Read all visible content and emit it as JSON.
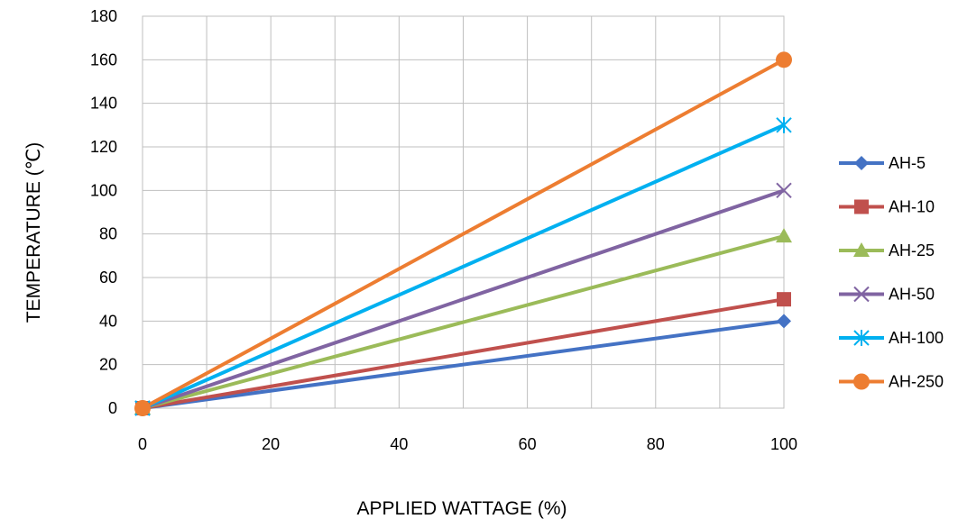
{
  "chart_data": {
    "type": "line",
    "xlabel": "APPLIED WATTAGE (%)",
    "ylabel": "TEMPERATURE (℃)",
    "xlim": [
      0,
      100
    ],
    "ylim": [
      0,
      180
    ],
    "xticks": [
      0,
      20,
      40,
      60,
      80,
      100
    ],
    "yticks": [
      0,
      20,
      40,
      60,
      80,
      100,
      120,
      140,
      160,
      180
    ],
    "grid": true,
    "legend_position": "right",
    "series": [
      {
        "name": "AH-5",
        "color": "#4472C4",
        "marker": "diamond",
        "x": [
          0,
          100
        ],
        "y": [
          0,
          40
        ]
      },
      {
        "name": "AH-10",
        "color": "#C0504D",
        "marker": "square",
        "x": [
          0,
          100
        ],
        "y": [
          0,
          50
        ]
      },
      {
        "name": "AH-25",
        "color": "#9BBB59",
        "marker": "triangle",
        "x": [
          0,
          100
        ],
        "y": [
          0,
          79
        ]
      },
      {
        "name": "AH-50",
        "color": "#8064A2",
        "marker": "x",
        "x": [
          0,
          100
        ],
        "y": [
          0,
          100
        ]
      },
      {
        "name": "AH-100",
        "color": "#00B0F0",
        "marker": "star",
        "x": [
          0,
          100
        ],
        "y": [
          0,
          130
        ]
      },
      {
        "name": "AH-250",
        "color": "#ED7D31",
        "marker": "circle",
        "x": [
          0,
          100
        ],
        "y": [
          0,
          160
        ]
      }
    ]
  }
}
